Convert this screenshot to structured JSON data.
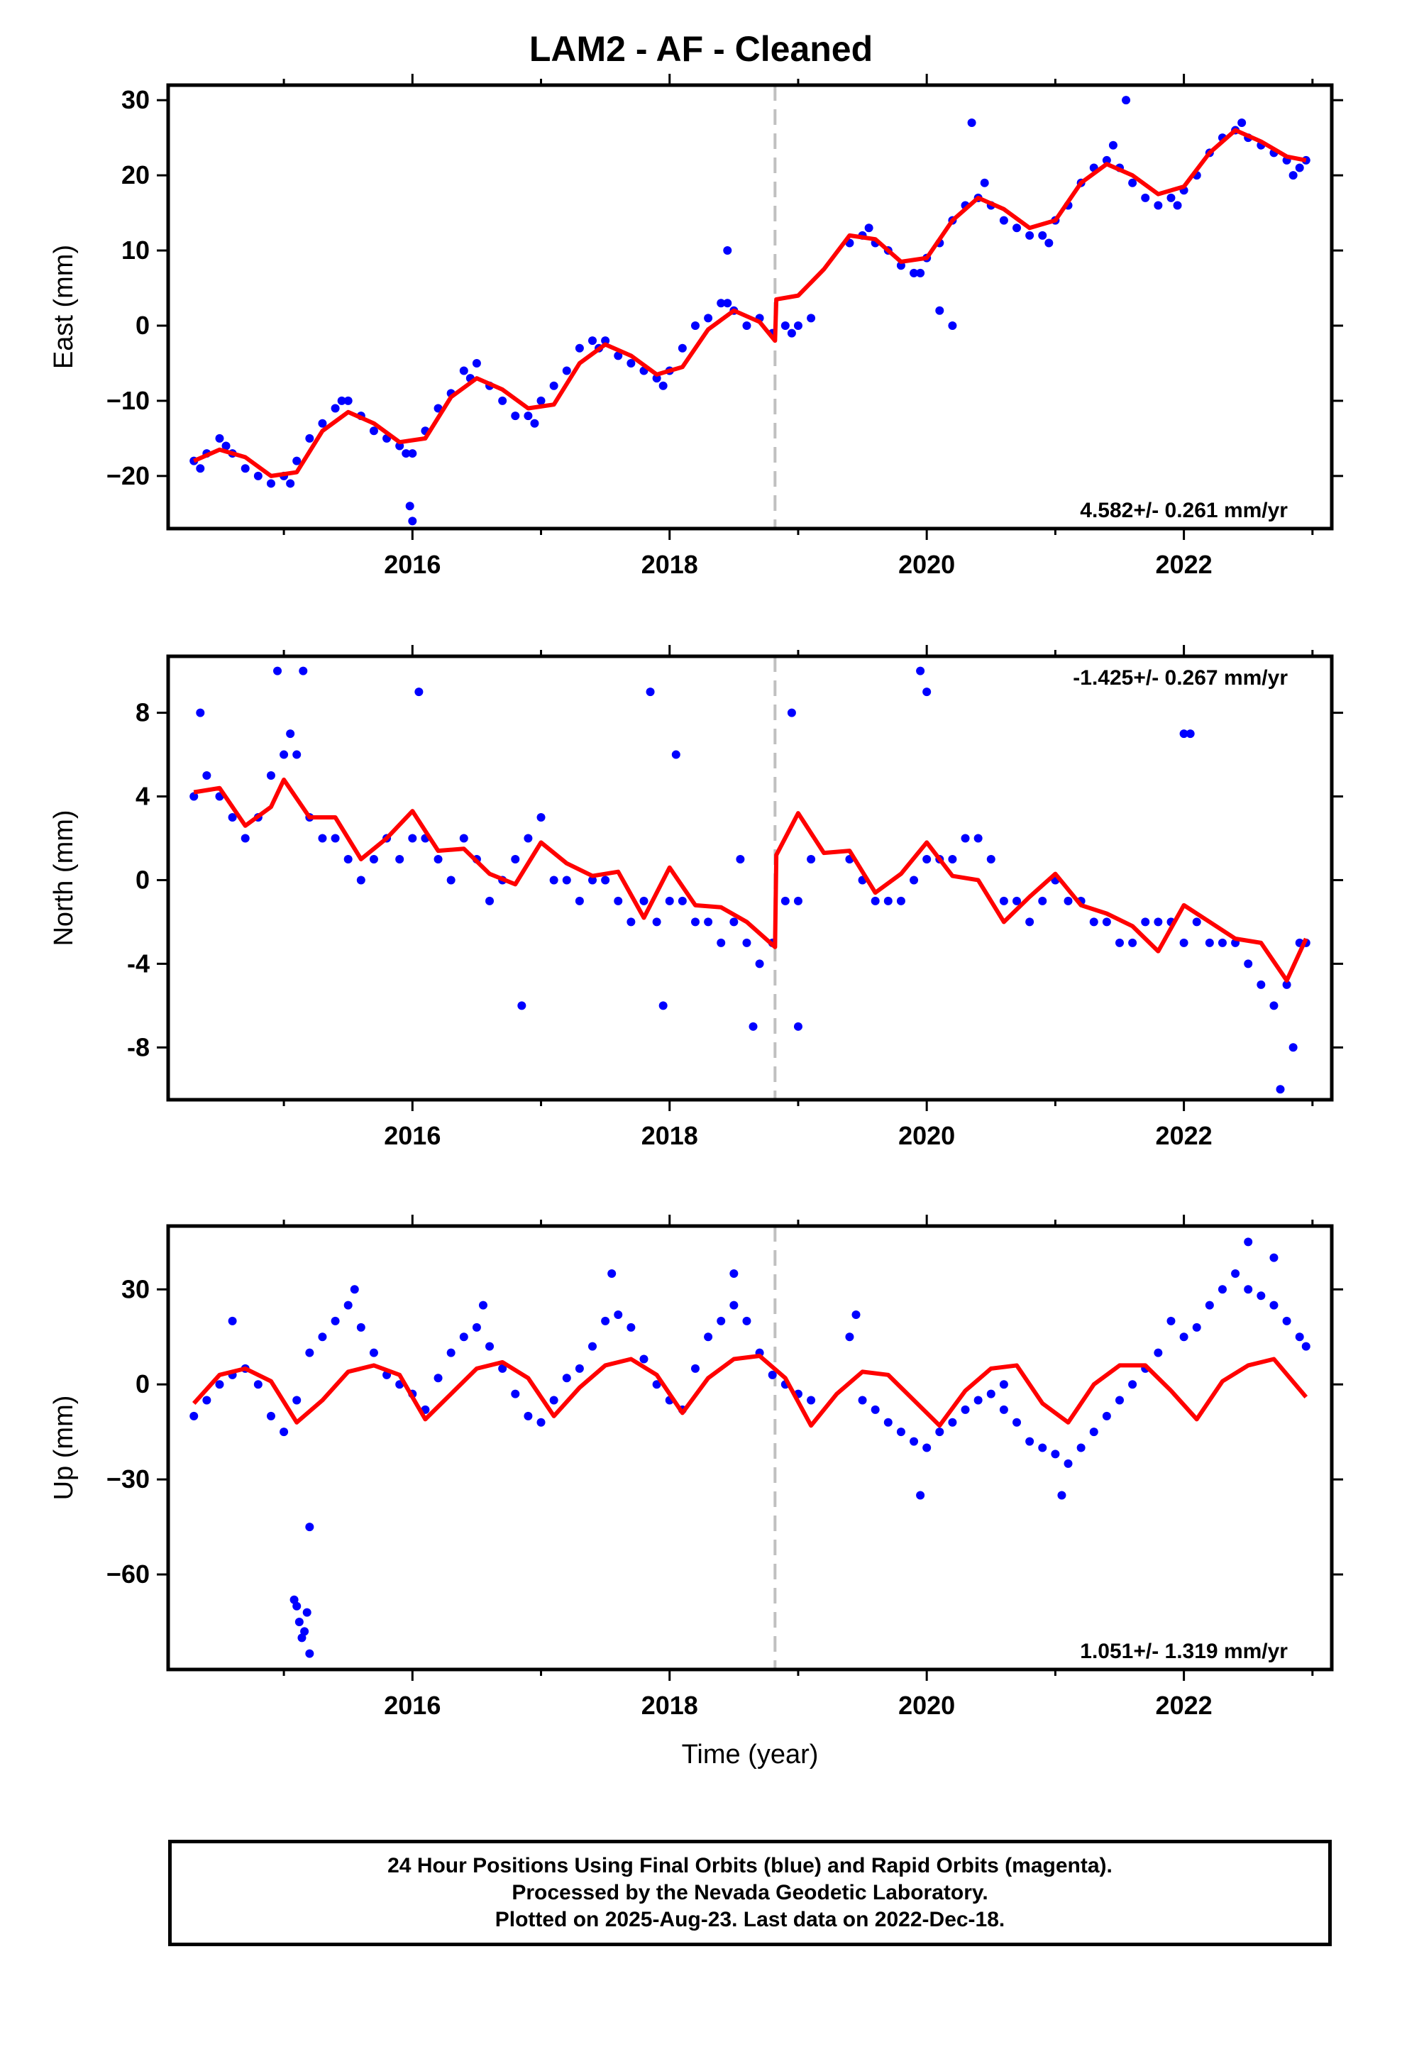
{
  "title": "LAM2  - AF - Cleaned",
  "footer": {
    "line1": "24 Hour Positions Using Final Orbits (blue) and Rapid Orbits (magenta).",
    "line2": "Processed by the Nevada Geodetic Laboratory.",
    "line3": "Plotted on 2025-Aug-23. Last data on 2022-Dec-18."
  },
  "colors": {
    "points": "#0000ff",
    "model": "#ff0000",
    "offset_line": "#c0c0c0"
  },
  "chart_data": [
    {
      "type": "scatter",
      "panel": "east",
      "ylabel": "East (mm)",
      "xlabel": "",
      "xlim": [
        2014.1,
        2023.15
      ],
      "ylim": [
        -27,
        32
      ],
      "xticks": [
        "2016",
        "2018",
        "2020",
        "2022"
      ],
      "yticks": [
        "30",
        "20",
        "10",
        "0",
        "−10",
        "−20"
      ],
      "ytick_values": [
        30,
        20,
        10,
        0,
        -10,
        -20
      ],
      "rate_text": "4.582+/- 0.261 mm/yr",
      "rate_position": "bottom-right",
      "offset_epoch": 2018.82,
      "model": {
        "x": [
          2014.3,
          2014.5,
          2014.7,
          2014.9,
          2015.1,
          2015.3,
          2015.5,
          2015.7,
          2015.9,
          2016.1,
          2016.3,
          2016.5,
          2016.7,
          2016.9,
          2017.1,
          2017.3,
          2017.5,
          2017.7,
          2017.9,
          2018.1,
          2018.3,
          2018.5,
          2018.7,
          2018.82,
          2018.83,
          2019.0,
          2019.2,
          2019.4,
          2019.6,
          2019.8,
          2020.0,
          2020.2,
          2020.4,
          2020.6,
          2020.8,
          2021.0,
          2021.2,
          2021.4,
          2021.6,
          2021.8,
          2022.0,
          2022.2,
          2022.4,
          2022.6,
          2022.8,
          2022.95
        ],
        "y": [
          -18,
          -16.5,
          -17.5,
          -20,
          -19.5,
          -14,
          -11.5,
          -13,
          -15.5,
          -15,
          -9.5,
          -7,
          -8.5,
          -11,
          -10.5,
          -5,
          -2.5,
          -4,
          -6.5,
          -5.5,
          -0.5,
          2,
          0.5,
          -2,
          3.5,
          4,
          7.5,
          12,
          11.5,
          8.5,
          9,
          14,
          17,
          15.5,
          13,
          14,
          19,
          21.5,
          20,
          17.5,
          18.5,
          23,
          26,
          24.5,
          22.5,
          22
        ]
      },
      "points": {
        "x": [
          2014.3,
          2014.4,
          2014.5,
          2014.6,
          2014.7,
          2014.8,
          2014.9,
          2015.0,
          2015.1,
          2015.2,
          2015.3,
          2015.4,
          2015.5,
          2015.6,
          2015.7,
          2015.8,
          2015.9,
          2016.0,
          2016.1,
          2016.2,
          2016.3,
          2016.4,
          2016.5,
          2016.6,
          2016.7,
          2016.8,
          2016.9,
          2017.0,
          2017.1,
          2017.2,
          2017.3,
          2017.4,
          2017.5,
          2017.6,
          2017.7,
          2017.8,
          2017.9,
          2018.0,
          2018.1,
          2018.2,
          2018.3,
          2018.4,
          2018.5,
          2018.6,
          2018.7,
          2018.8,
          2018.9,
          2019.0,
          2019.1,
          2019.4,
          2019.5,
          2019.6,
          2019.7,
          2019.8,
          2019.9,
          2020.0,
          2020.1,
          2020.2,
          2020.3,
          2020.4,
          2020.5,
          2020.6,
          2020.7,
          2020.8,
          2020.9,
          2021.0,
          2021.1,
          2021.2,
          2021.3,
          2021.4,
          2021.5,
          2021.6,
          2021.7,
          2021.8,
          2021.9,
          2022.0,
          2022.1,
          2022.2,
          2022.3,
          2022.4,
          2022.5,
          2022.6,
          2022.7,
          2022.8,
          2022.9,
          2022.95,
          2014.35,
          2014.55,
          2015.05,
          2015.45,
          2015.95,
          2016.45,
          2016.95,
          2017.45,
          2017.95,
          2018.45,
          2018.95,
          2019.55,
          2019.95,
          2020.45,
          2020.95,
          2021.45,
          2021.95,
          2022.45,
          2022.85,
          2015.98,
          2016.0,
          2018.45,
          2020.1,
          2020.2,
          2021.55,
          2020.35
        ],
        "y": [
          -18,
          -17,
          -15,
          -17,
          -19,
          -20,
          -21,
          -20,
          -18,
          -15,
          -13,
          -11,
          -10,
          -12,
          -14,
          -15,
          -16,
          -17,
          -14,
          -11,
          -9,
          -6,
          -5,
          -8,
          -10,
          -12,
          -12,
          -10,
          -8,
          -6,
          -3,
          -2,
          -2,
          -4,
          -5,
          -6,
          -7,
          -6,
          -3,
          0,
          1,
          3,
          2,
          0,
          1,
          -1,
          0,
          0,
          1,
          11,
          12,
          11,
          10,
          8,
          7,
          9,
          11,
          14,
          16,
          17,
          16,
          14,
          13,
          12,
          12,
          14,
          16,
          19,
          21,
          22,
          21,
          19,
          17,
          16,
          17,
          18,
          20,
          23,
          25,
          26,
          25,
          24,
          23,
          22,
          21,
          22,
          -19,
          -16,
          -21,
          -10,
          -17,
          -7,
          -13,
          -3,
          -8,
          3,
          -1,
          13,
          7,
          19,
          11,
          24,
          16,
          27,
          20,
          -24,
          -26,
          10,
          2,
          0,
          30,
          27
        ]
      }
    },
    {
      "type": "scatter",
      "panel": "north",
      "ylabel": "North (mm)",
      "xlabel": "",
      "xlim": [
        2014.1,
        2023.15
      ],
      "ylim": [
        -10.5,
        10.7
      ],
      "xticks": [
        "2016",
        "2018",
        "2020",
        "2022"
      ],
      "yticks": [
        "8",
        "4",
        "0",
        "-4",
        "-8"
      ],
      "ytick_values": [
        8,
        4,
        0,
        -4,
        -8
      ],
      "rate_text": "-1.425+/- 0.267 mm/yr",
      "rate_position": "top-right",
      "offset_epoch": 2018.82,
      "model": {
        "x": [
          2014.3,
          2014.5,
          2014.7,
          2014.9,
          2015.0,
          2015.2,
          2015.4,
          2015.6,
          2015.8,
          2016.0,
          2016.2,
          2016.4,
          2016.6,
          2016.8,
          2017.0,
          2017.2,
          2017.4,
          2017.6,
          2017.8,
          2018.0,
          2018.2,
          2018.4,
          2018.6,
          2018.82,
          2018.83,
          2019.0,
          2019.2,
          2019.4,
          2019.6,
          2019.8,
          2020.0,
          2020.2,
          2020.4,
          2020.6,
          2020.8,
          2021.0,
          2021.2,
          2021.4,
          2021.6,
          2021.8,
          2022.0,
          2022.2,
          2022.4,
          2022.6,
          2022.8,
          2022.95
        ],
        "y": [
          4.2,
          4.4,
          2.6,
          3.5,
          4.8,
          3.0,
          3.0,
          1.0,
          2.0,
          3.3,
          1.4,
          1.5,
          0.3,
          -0.2,
          1.8,
          0.8,
          0.2,
          0.4,
          -1.8,
          0.6,
          -1.2,
          -1.3,
          -2.0,
          -3.2,
          1.2,
          3.2,
          1.3,
          1.4,
          -0.6,
          0.3,
          1.8,
          0.2,
          0.0,
          -2.0,
          -0.8,
          0.3,
          -1.2,
          -1.6,
          -2.2,
          -3.4,
          -1.2,
          -2.0,
          -2.8,
          -3.0,
          -4.8,
          -2.8
        ]
      },
      "points": {
        "x": [
          2014.3,
          2014.4,
          2014.5,
          2014.6,
          2014.7,
          2014.8,
          2014.9,
          2015.0,
          2015.1,
          2015.2,
          2015.3,
          2015.4,
          2015.5,
          2015.6,
          2015.7,
          2015.8,
          2015.9,
          2016.0,
          2016.1,
          2016.2,
          2016.3,
          2016.4,
          2016.5,
          2016.6,
          2016.7,
          2016.8,
          2016.9,
          2017.0,
          2017.1,
          2017.2,
          2017.3,
          2017.4,
          2017.5,
          2017.6,
          2017.7,
          2017.8,
          2017.9,
          2018.0,
          2018.1,
          2018.2,
          2018.3,
          2018.4,
          2018.5,
          2018.6,
          2018.7,
          2018.8,
          2018.9,
          2019.0,
          2019.1,
          2019.4,
          2019.5,
          2019.6,
          2019.7,
          2019.8,
          2019.9,
          2020.0,
          2020.1,
          2020.2,
          2020.3,
          2020.4,
          2020.5,
          2020.6,
          2020.7,
          2020.8,
          2020.9,
          2021.0,
          2021.1,
          2021.2,
          2021.3,
          2021.4,
          2021.5,
          2021.6,
          2021.7,
          2021.8,
          2021.9,
          2022.0,
          2022.1,
          2022.2,
          2022.3,
          2022.4,
          2022.5,
          2022.6,
          2022.7,
          2022.8,
          2022.9,
          2022.95,
          2014.35,
          2014.95,
          2015.15,
          2015.05,
          2016.05,
          2017.85,
          2018.05,
          2018.55,
          2018.95,
          2019.0,
          2019.95,
          2020.0,
          2022.0,
          2022.05,
          2022.85,
          2022.75,
          2016.85,
          2017.95,
          2018.65
        ],
        "y": [
          4,
          5,
          4,
          3,
          2,
          3,
          5,
          6,
          6,
          3,
          2,
          2,
          1,
          0,
          1,
          2,
          1,
          2,
          2,
          1,
          0,
          2,
          1,
          -1,
          0,
          1,
          2,
          3,
          0,
          0,
          -1,
          0,
          0,
          -1,
          -2,
          -1,
          -2,
          -1,
          -1,
          -2,
          -2,
          -3,
          -2,
          -3,
          -4,
          -3,
          -1,
          -1,
          1,
          1,
          0,
          -1,
          -1,
          -1,
          0,
          1,
          1,
          1,
          2,
          2,
          1,
          -1,
          -1,
          -2,
          -1,
          0,
          -1,
          -1,
          -2,
          -2,
          -3,
          -3,
          -2,
          -2,
          -2,
          -3,
          -2,
          -3,
          -3,
          -3,
          -4,
          -5,
          -6,
          -5,
          -3,
          -3,
          8,
          10,
          10,
          7,
          9,
          9,
          6,
          1,
          8,
          -7,
          10,
          9,
          7,
          7,
          -8,
          -10,
          -6,
          -6,
          -7
        ]
      }
    },
    {
      "type": "scatter",
      "panel": "up",
      "ylabel": "Up (mm)",
      "xlabel": "Time (year)",
      "xlim": [
        2014.1,
        2023.15
      ],
      "ylim": [
        -90,
        50
      ],
      "xticks": [
        "2016",
        "2018",
        "2020",
        "2022"
      ],
      "yticks": [
        "30",
        "0",
        "−30",
        "−60"
      ],
      "ytick_values": [
        30,
        0,
        -30,
        -60
      ],
      "rate_text": "1.051+/- 1.319 mm/yr",
      "rate_position": "bottom-right",
      "offset_epoch": 2018.82,
      "model": {
        "x": [
          2014.3,
          2014.5,
          2014.7,
          2014.9,
          2015.1,
          2015.3,
          2015.5,
          2015.7,
          2015.9,
          2016.1,
          2016.3,
          2016.5,
          2016.7,
          2016.9,
          2017.1,
          2017.3,
          2017.5,
          2017.7,
          2017.9,
          2018.1,
          2018.3,
          2018.5,
          2018.7,
          2018.9,
          2019.1,
          2019.3,
          2019.5,
          2019.7,
          2019.9,
          2020.1,
          2020.3,
          2020.5,
          2020.7,
          2020.9,
          2021.1,
          2021.3,
          2021.5,
          2021.7,
          2021.9,
          2022.1,
          2022.3,
          2022.5,
          2022.7,
          2022.95
        ],
        "y": [
          -6,
          3,
          5,
          1,
          -12,
          -5,
          4,
          6,
          3,
          -11,
          -3,
          5,
          7,
          2,
          -10,
          -1,
          6,
          8,
          3,
          -9,
          2,
          8,
          9,
          2,
          -13,
          -3,
          4,
          3,
          -5,
          -13,
          -2,
          5,
          6,
          -6,
          -12,
          0,
          6,
          6,
          -2,
          -11,
          1,
          6,
          8,
          -4
        ]
      },
      "points": {
        "x": [
          2014.3,
          2014.4,
          2014.5,
          2014.6,
          2014.7,
          2014.8,
          2014.9,
          2015.0,
          2015.1,
          2015.2,
          2015.3,
          2015.4,
          2015.5,
          2015.6,
          2015.7,
          2015.8,
          2015.9,
          2016.0,
          2016.1,
          2016.2,
          2016.3,
          2016.4,
          2016.5,
          2016.6,
          2016.7,
          2016.8,
          2016.9,
          2017.0,
          2017.1,
          2017.2,
          2017.3,
          2017.4,
          2017.5,
          2017.6,
          2017.7,
          2017.8,
          2017.9,
          2018.0,
          2018.1,
          2018.2,
          2018.3,
          2018.4,
          2018.5,
          2018.6,
          2018.7,
          2018.8,
          2018.9,
          2019.0,
          2019.1,
          2019.4,
          2019.5,
          2019.6,
          2019.7,
          2019.8,
          2019.9,
          2020.0,
          2020.1,
          2020.2,
          2020.3,
          2020.4,
          2020.5,
          2020.6,
          2020.7,
          2020.8,
          2020.9,
          2021.0,
          2021.1,
          2021.2,
          2021.3,
          2021.4,
          2021.5,
          2021.6,
          2021.7,
          2021.8,
          2021.9,
          2022.0,
          2022.1,
          2022.2,
          2022.3,
          2022.4,
          2022.5,
          2022.6,
          2022.7,
          2022.8,
          2022.9,
          2022.95,
          2015.1,
          2015.12,
          2015.14,
          2015.16,
          2015.18,
          2015.08,
          2015.2,
          2015.2,
          2014.6,
          2015.55,
          2016.55,
          2017.55,
          2018.5,
          2019.45,
          2019.95,
          2020.6,
          2021.05,
          2022.5,
          2022.7
        ],
        "y": [
          -10,
          -5,
          0,
          3,
          5,
          0,
          -10,
          -15,
          -5,
          10,
          15,
          20,
          25,
          18,
          10,
          3,
          0,
          -3,
          -8,
          2,
          10,
          15,
          18,
          12,
          5,
          -3,
          -10,
          -12,
          -5,
          2,
          5,
          12,
          20,
          22,
          18,
          8,
          0,
          -5,
          -8,
          5,
          15,
          20,
          25,
          20,
          10,
          3,
          0,
          -3,
          -5,
          15,
          -5,
          -8,
          -12,
          -15,
          -18,
          -20,
          -15,
          -12,
          -8,
          -5,
          -3,
          -8,
          -12,
          -18,
          -20,
          -22,
          -25,
          -20,
          -15,
          -10,
          -5,
          0,
          5,
          10,
          20,
          15,
          18,
          25,
          30,
          35,
          30,
          28,
          25,
          20,
          15,
          12,
          -70,
          -75,
          -80,
          -78,
          -72,
          -68,
          -85,
          -45,
          20,
          30,
          25,
          35,
          35,
          22,
          -35,
          0,
          -35,
          45,
          40
        ]
      }
    }
  ]
}
